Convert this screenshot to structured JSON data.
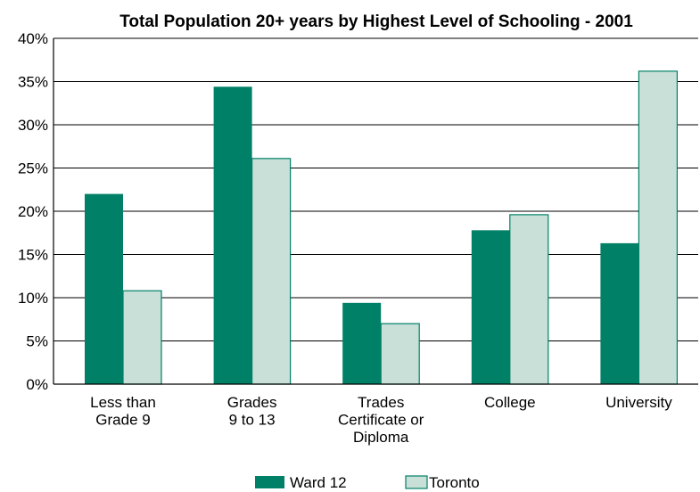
{
  "chart_data": {
    "type": "bar",
    "title": "Total Population 20+ years by Highest Level of Schooling - 2001",
    "xlabel": "",
    "ylabel": "",
    "categories": [
      [
        "Less than",
        "Grade 9"
      ],
      [
        "Grades",
        "9 to 13"
      ],
      [
        "Trades",
        "Certificate or",
        "Diploma"
      ],
      [
        "College"
      ],
      [
        "University"
      ]
    ],
    "series": [
      {
        "name": "Ward 12",
        "color": "#008066",
        "values": [
          22.0,
          34.4,
          9.4,
          17.8,
          16.3
        ]
      },
      {
        "name": "Toronto",
        "color": "#c8e0d8",
        "stroke": "#008066",
        "values": [
          10.8,
          26.1,
          7.0,
          19.6,
          36.2
        ]
      }
    ],
    "ylim": [
      0,
      40
    ],
    "yticks": [
      0,
      5,
      10,
      15,
      20,
      25,
      30,
      35,
      40
    ],
    "ytick_format": "%",
    "grid": true,
    "legend": "bottom-center"
  }
}
